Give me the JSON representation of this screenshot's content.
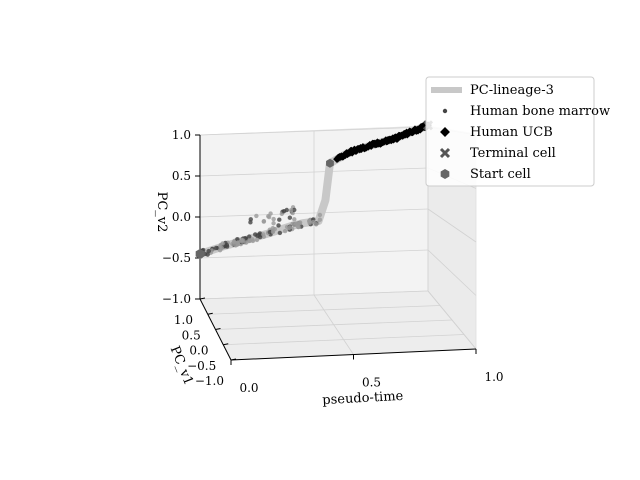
{
  "chart_data": {
    "type": "scatter",
    "projection": "3d",
    "title": "",
    "axes": {
      "x": {
        "label": "pseudo-time",
        "ticks": [
          "0.0",
          "0.5",
          "1.0"
        ],
        "range": [
          0,
          1
        ]
      },
      "y": {
        "label": "PC_v1",
        "ticks": [
          "1.0",
          "0.5",
          "0.0",
          "−0.5",
          "−1.0"
        ],
        "range": [
          -1,
          1
        ]
      },
      "z": {
        "label": "PC_v2",
        "ticks": [
          "1.0",
          "0.5",
          "0.0",
          "−0.5",
          "−1.0"
        ],
        "range": [
          -1,
          1
        ]
      }
    },
    "grid": true,
    "legend": {
      "placement": "top-right",
      "entries": [
        {
          "label": "PC-lineage-3",
          "marker": "thick-line",
          "color": "#c8c8c8"
        },
        {
          "label": "Human bone marrow",
          "marker": "dot",
          "color": "#444444"
        },
        {
          "label": "Human UCB",
          "marker": "diamond",
          "color": "#000000"
        },
        {
          "label": "Terminal cell",
          "marker": "x",
          "color": "#555555"
        },
        {
          "label": "Start cell",
          "marker": "hexagon",
          "color": "#666666"
        }
      ]
    },
    "series": [
      {
        "name": "PC-lineage-3",
        "kind": "line",
        "color": "#c8c8c8",
        "points": [
          [
            0.0,
            0,
            -0.45
          ],
          [
            0.1,
            0,
            -0.37
          ],
          [
            0.2,
            0,
            -0.3
          ],
          [
            0.3,
            0,
            -0.23
          ],
          [
            0.4,
            0,
            -0.15
          ],
          [
            0.45,
            0,
            -0.12
          ],
          [
            0.52,
            0,
            -0.1
          ],
          [
            0.55,
            0,
            0.15
          ],
          [
            0.57,
            0,
            0.6
          ],
          [
            0.65,
            0,
            0.72
          ],
          [
            0.75,
            0,
            0.8
          ],
          [
            0.85,
            0,
            0.87
          ],
          [
            0.95,
            0,
            0.97
          ],
          [
            1.0,
            0,
            1.02
          ]
        ]
      },
      {
        "name": "Human bone marrow",
        "kind": "scatter",
        "color": "#444444",
        "x_range": [
          0.0,
          0.53
        ],
        "z_range": [
          -0.48,
          0.18
        ],
        "count": 140
      },
      {
        "name": "Human UCB",
        "kind": "scatter",
        "color": "#000000",
        "x_range": [
          0.6,
          1.0
        ],
        "z_range": [
          0.65,
          1.02
        ],
        "count": 120
      },
      {
        "name": "Terminal cell",
        "kind": "marker",
        "color": "#555555",
        "point": [
          1.0,
          0,
          1.02
        ]
      },
      {
        "name": "Start cell",
        "kind": "marker",
        "color": "#666666",
        "point": [
          0.0,
          0,
          -0.45
        ]
      }
    ]
  }
}
